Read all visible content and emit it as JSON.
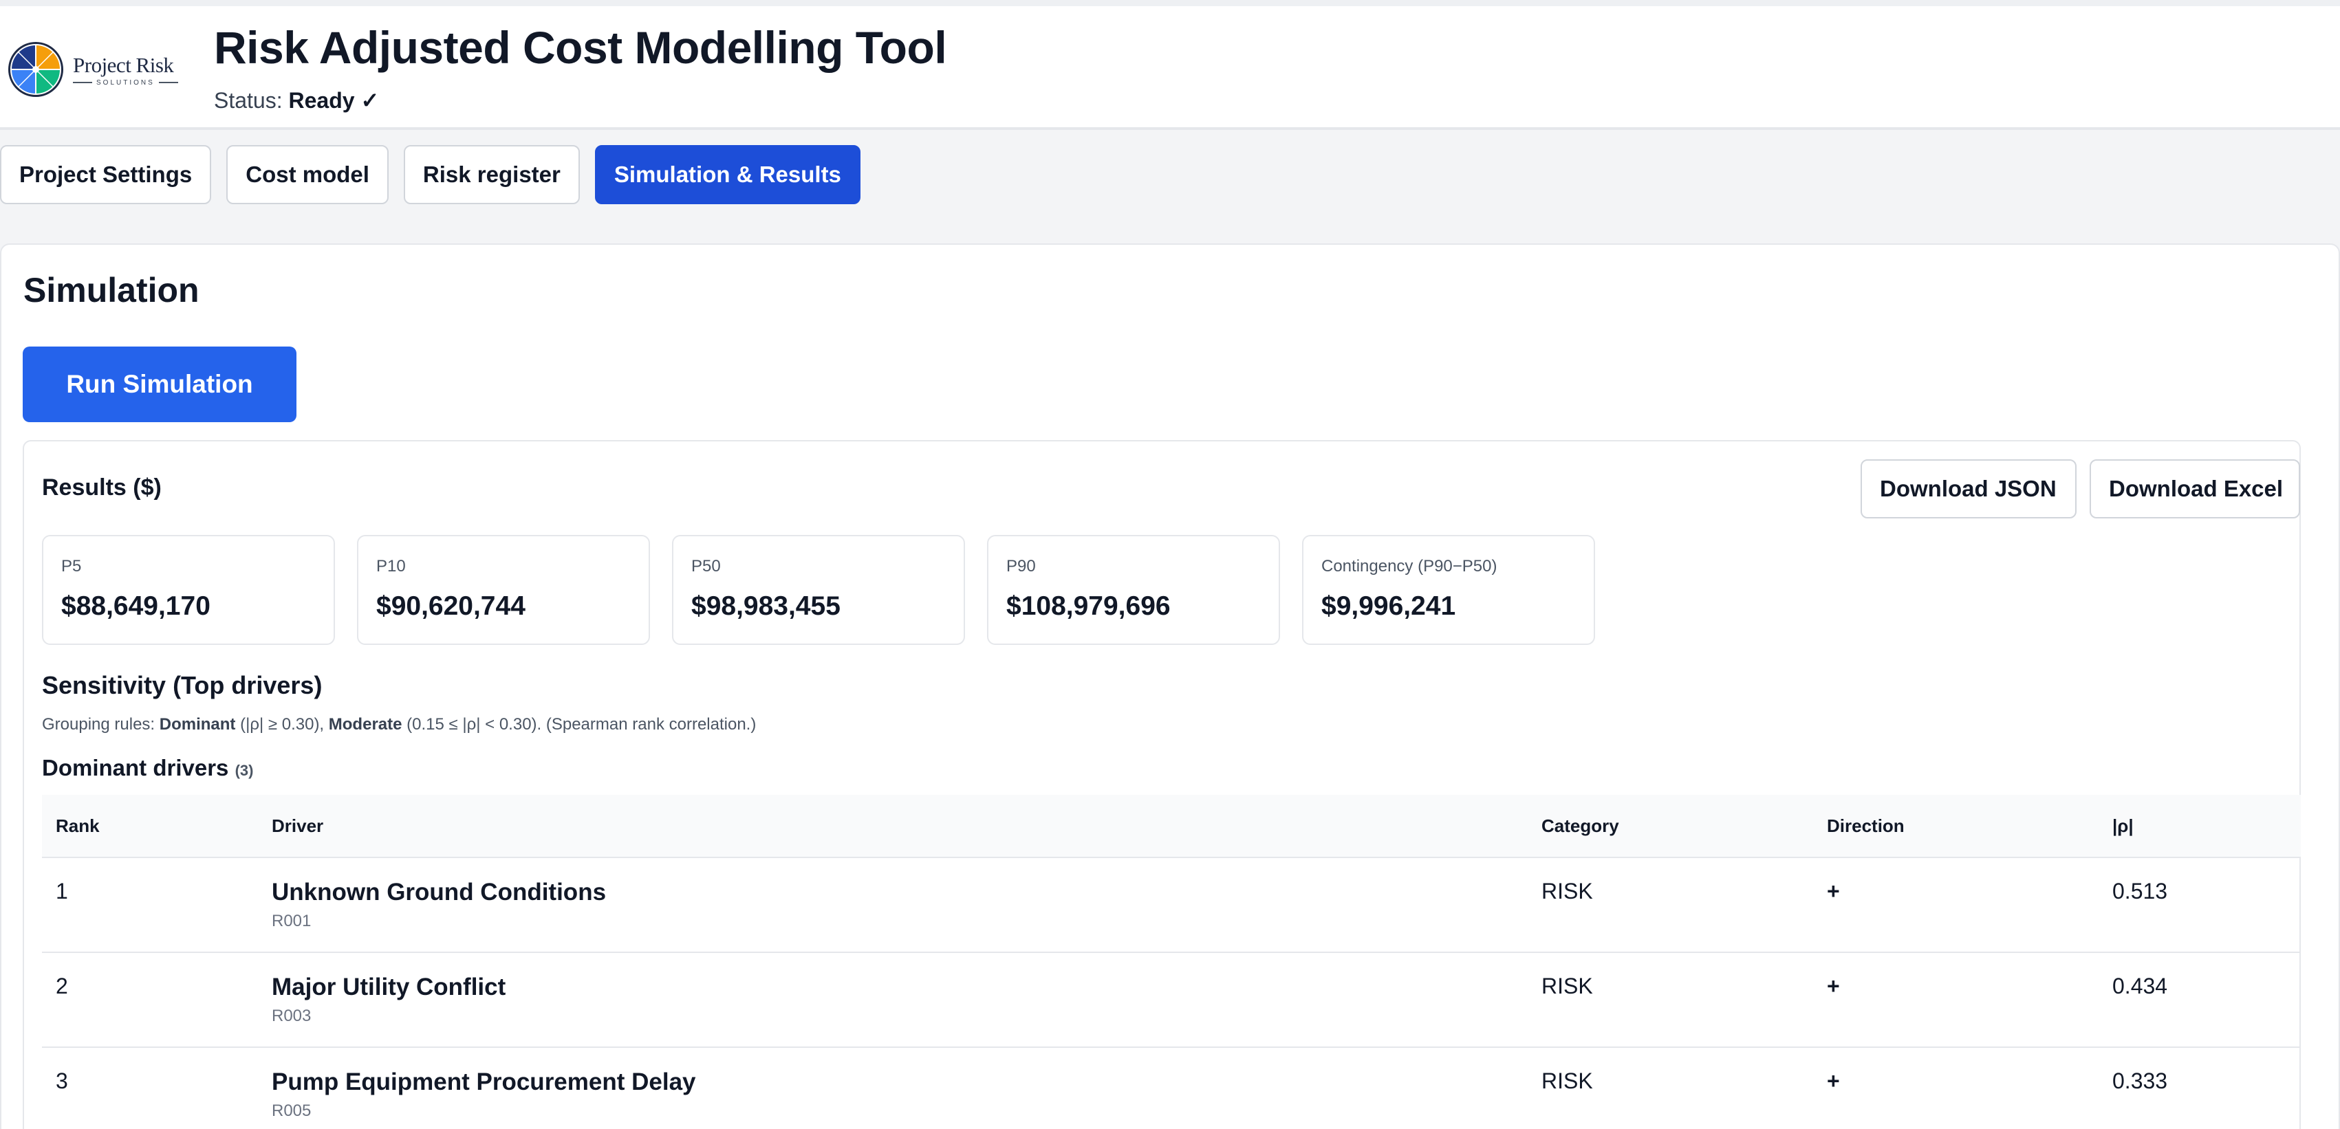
{
  "header": {
    "logo": {
      "name": "Project Risk",
      "sub": "SOLUTIONS",
      "icon": "globe-compass-icon"
    },
    "title": "Risk Adjusted Cost Modelling Tool",
    "status_label": "Status:",
    "status_value": "Ready ✓"
  },
  "tabs": [
    {
      "label": "Project Settings",
      "active": false
    },
    {
      "label": "Cost model",
      "active": false
    },
    {
      "label": "Risk register",
      "active": false
    },
    {
      "label": "Simulation & Results",
      "active": true
    }
  ],
  "simulation": {
    "title": "Simulation",
    "run_label": "Run Simulation"
  },
  "results": {
    "title": "Results ($)",
    "download_json": "Download JSON",
    "download_excel": "Download Excel",
    "stats": [
      {
        "label": "P5",
        "value": "$88,649,170"
      },
      {
        "label": "P10",
        "value": "$90,620,744"
      },
      {
        "label": "P50",
        "value": "$98,983,455"
      },
      {
        "label": "P90",
        "value": "$108,979,696"
      },
      {
        "label": "Contingency (P90−P50)",
        "value": "$9,996,241"
      }
    ]
  },
  "sensitivity": {
    "title": "Sensitivity (Top drivers)",
    "grouping_prefix": "Grouping rules:",
    "dominant_label": "Dominant",
    "dominant_rule": "(|ρ| ≥ 0.30),",
    "moderate_label": "Moderate",
    "moderate_rule": "(0.15 ≤ |ρ| < 0.30). (Spearman rank correlation.)",
    "dominant_title": "Dominant drivers",
    "dominant_count": "(3)",
    "columns": {
      "rank": "Rank",
      "driver": "Driver",
      "category": "Category",
      "direction": "Direction",
      "rho": "|ρ|"
    },
    "rows": [
      {
        "rank": "1",
        "name": "Unknown Ground Conditions",
        "id": "R001",
        "category": "RISK",
        "direction": "+",
        "rho": "0.513"
      },
      {
        "rank": "2",
        "name": "Major Utility Conflict",
        "id": "R003",
        "category": "RISK",
        "direction": "+",
        "rho": "0.434"
      },
      {
        "rank": "3",
        "name": "Pump Equipment Procurement Delay",
        "id": "R005",
        "category": "RISK",
        "direction": "+",
        "rho": "0.333"
      }
    ]
  },
  "colors": {
    "accent": "#2563eb",
    "tab_active": "#1d4ed8",
    "background": "#f3f4f6"
  }
}
